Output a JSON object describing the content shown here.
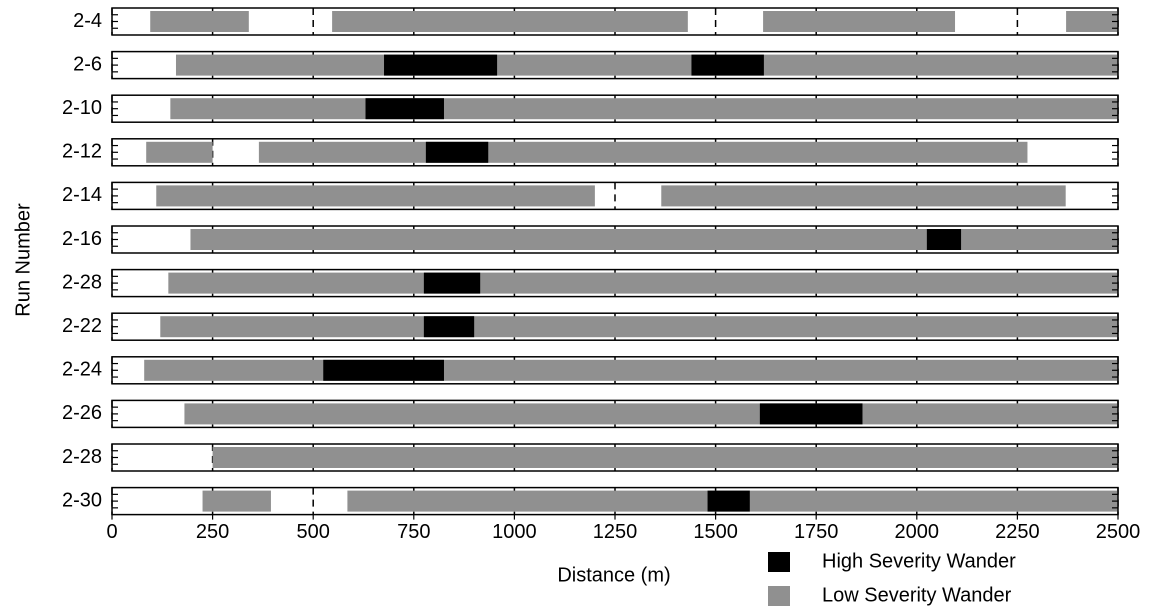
{
  "chart_data": {
    "type": "broken_bar",
    "x_label": "Distance (m)",
    "y_label": "Run Number",
    "categories": [
      "2-4",
      "2-6",
      "2-10",
      "2-12",
      "2-14",
      "2-16",
      "2-28",
      "2-22",
      "2-24",
      "2-26",
      "2-28",
      "2-30"
    ],
    "xlim": [
      0,
      2500
    ],
    "xticks": [
      0,
      250,
      500,
      750,
      1000,
      1250,
      1500,
      1750,
      2000,
      2250,
      2500
    ],
    "grid": true,
    "legend": "bottom-right",
    "series": [
      {
        "name": "Low Severity Wander",
        "color": "#909090",
        "values": [
          [
            [
              95,
              340
            ],
            [
              547,
              1431
            ],
            [
              1618,
              2095
            ],
            [
              2371,
              2500
            ]
          ],
          [
            [
              159,
              2500
            ]
          ],
          [
            [
              145,
              2500
            ]
          ],
          [
            [
              85,
              250
            ],
            [
              365,
              2275
            ]
          ],
          [
            [
              110,
              1200
            ],
            [
              1365,
              2370
            ]
          ],
          [
            [
              195,
              2500
            ]
          ],
          [
            [
              140,
              2500
            ]
          ],
          [
            [
              120,
              2500
            ]
          ],
          [
            [
              80,
              2500
            ]
          ],
          [
            [
              180,
              2500
            ]
          ],
          [
            [
              250,
              2500
            ]
          ],
          [
            [
              225,
              395
            ],
            [
              585,
              2500
            ]
          ]
        ]
      },
      {
        "name": "High Severity Wander",
        "color": "#000000",
        "values": [
          [],
          [
            [
              676,
              957
            ],
            [
              1440,
              1620
            ]
          ],
          [
            [
              630,
              825
            ]
          ],
          [
            [
              780,
              935
            ]
          ],
          [],
          [
            [
              2025,
              2110
            ]
          ],
          [
            [
              775,
              915
            ]
          ],
          [
            [
              775,
              900
            ]
          ],
          [
            [
              525,
              825
            ]
          ],
          [
            [
              1610,
              1865
            ]
          ],
          [],
          [
            [
              1480,
              1585
            ]
          ]
        ]
      }
    ]
  }
}
